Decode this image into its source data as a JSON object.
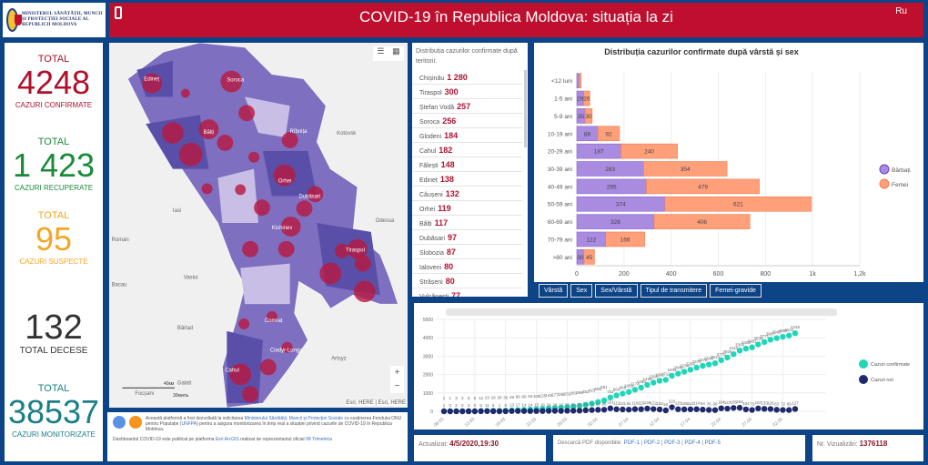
{
  "header": {
    "logo_text": "MINISTERUL SĂNĂTĂȚII, MUNCII ȘI PROTECȚIEI SOCIALE AL REPUBLICII MOLDOVA",
    "title": "COVID-19 în Republica Moldova: situația la zi",
    "lang": "Ru",
    "icon": "phone-icon"
  },
  "stats": [
    {
      "top": "TOTAL",
      "value": "4248",
      "label": "CAZURI CONFIRMATE",
      "color": "#b0102a"
    },
    {
      "top": "TOTAL",
      "value": "1 423",
      "label": "CAZURI RECUPERATE",
      "color": "#1b8a3a"
    },
    {
      "top": "TOTAL",
      "value": "95",
      "label": "CAZURI SUSPECTE",
      "color": "#f5a623"
    },
    {
      "top": "",
      "value": "132",
      "label": "TOTAL DECESE",
      "color": "#333333"
    },
    {
      "top": "TOTAL",
      "value": "38537",
      "label": "CAZURI MONITORIZATE",
      "color": "#1a7f86"
    }
  ],
  "map": {
    "labels": [
      "Edineț",
      "Soroca",
      "Bălți",
      "Rîbnița",
      "Kotovsk",
      "Orhei",
      "Dubăsari",
      "Kishinev",
      "Iasi",
      "Roman",
      "Tiraspol",
      "Vaslui",
      "Bacau",
      "Bârlad",
      "Comrat",
      "Ciadyr-Lunga",
      "Artsyz",
      "Cahul",
      "Galati",
      "Focșani",
      "Odessa"
    ],
    "scale_km": "40км",
    "scale_mi": "30миль",
    "attribution": "Esri, HERE | Esri, HERE",
    "zoom_in": "+",
    "zoom_out": "−"
  },
  "info": {
    "line1a": "Această platformă a fost dezvoltată la solicitarea ",
    "link1": "Ministerului Sănătății, Muncii și Protecției Sociale",
    "line1b": " cu susținerea Fondului ONU pentru Populație (",
    "link2": "UNFPA",
    "line1c": ") pentru a asigura monitorizarea în timp real a situației privind cazurile de COVID-19 în Republica Moldova.",
    "line2a": "Dashboardul COVID-19 este publicat pe platforma ",
    "link3": "Esri ArcGIS",
    "line2b": " realizat de reprezentantul oficial ",
    "link4": "IM Trimetrica"
  },
  "territory": {
    "header": "Distribuția cazurilor confirmate după teritorii:",
    "items": [
      {
        "name": "Chișinău",
        "value": "1 280"
      },
      {
        "name": "Tiraspol",
        "value": "300"
      },
      {
        "name": "Ștefan Vodă",
        "value": "257"
      },
      {
        "name": "Soroca",
        "value": "256"
      },
      {
        "name": "Glodeni",
        "value": "184"
      },
      {
        "name": "Cahul",
        "value": "182"
      },
      {
        "name": "Fălești",
        "value": "148"
      },
      {
        "name": "Edineț",
        "value": "138"
      },
      {
        "name": "Căușeni",
        "value": "132"
      },
      {
        "name": "Orhei",
        "value": "119"
      },
      {
        "name": "Bălți",
        "value": "117"
      },
      {
        "name": "Dubăsari",
        "value": "97"
      },
      {
        "name": "Slobozia",
        "value": "87"
      },
      {
        "name": "Ialoveni",
        "value": "80"
      },
      {
        "name": "Strășeni",
        "value": "80"
      },
      {
        "name": "Vulcănești",
        "value": "77"
      }
    ]
  },
  "tabs": [
    "Vârstă",
    "Sex",
    "Sex/Vârstă",
    "Tipul de transmitere",
    "Femei-gravide"
  ],
  "chart_data": [
    {
      "type": "bar",
      "stacked": true,
      "orientation": "horizontal",
      "title": "Distribuția cazurilor confirmate după vârstă și sex",
      "categories": [
        "<12 luni",
        "1-5 ani",
        "5-9 ani",
        "10-19 ani",
        "20-29 ani",
        "30-39 ani",
        "40-49 ani",
        "50-59 ani",
        "60-69 ani",
        "70-79 ani",
        ">80 ani"
      ],
      "series": [
        {
          "name": "Bărbați",
          "color": "#a98be0",
          "values": [
            10,
            29,
            35,
            89,
            187,
            283,
            295,
            374,
            328,
            122,
            30
          ]
        },
        {
          "name": "Femei",
          "color": "#ffa07a",
          "values": [
            8,
            26,
            30,
            92,
            240,
            354,
            479,
            621,
            406,
            166,
            45
          ]
        }
      ],
      "xlim": [
        0,
        1200
      ],
      "xticks": [
        "0",
        "200",
        "400",
        "600",
        "800",
        "1k",
        "1,2k"
      ],
      "legend": "right",
      "grid": true
    },
    {
      "type": "scatter",
      "x_start": "08.03",
      "xticks": [
        "08.03",
        "13.03",
        "18.03",
        "23.03",
        "28.03",
        "02.04",
        "07.04",
        "12.04",
        "17.04",
        "22.04",
        "27.04",
        "02.05"
      ],
      "ylim": [
        0,
        5000
      ],
      "yticks": [
        "0",
        "1000",
        "2000",
        "3000",
        "4000",
        "5000"
      ],
      "legend": "right",
      "grid": true,
      "series": [
        {
          "name": "Cazuri confirmate",
          "color": "#1fd6b8",
          "values": [
            1,
            1,
            3,
            3,
            6,
            6,
            12,
            23,
            29,
            30,
            36,
            49,
            66,
            80,
            94,
            109,
            125,
            149,
            177,
            199,
            231,
            263,
            298,
            353,
            423,
            505,
            591,
            752,
            864,
            965,
            1056,
            1174,
            1289,
            1438,
            1560,
            1662,
            1712,
            1934,
            2049,
            2154,
            2264,
            2378,
            2472,
            2548,
            2614,
            2778,
            2925,
            3110,
            3304,
            3408,
            3481,
            3638,
            3771,
            3897,
            3980,
            4052,
            4121,
            4248
          ]
        },
        {
          "name": "Cazuri noi",
          "color": "#1e2a6b",
          "values": [
            1,
            0,
            2,
            0,
            3,
            0,
            6,
            11,
            6,
            1,
            6,
            13,
            17,
            14,
            14,
            15,
            16,
            24,
            28,
            22,
            32,
            32,
            35,
            55,
            70,
            82,
            86,
            161,
            112,
            101,
            91,
            118,
            115,
            149,
            122,
            102,
            50,
            222,
            115,
            105,
            110,
            114,
            94,
            76,
            66,
            164,
            147,
            185,
            194,
            104,
            73,
            157,
            133,
            126,
            83,
            72,
            69,
            127
          ]
        }
      ]
    }
  ],
  "footer": {
    "updated_label": "Actualizat:",
    "updated_value": "4/5/2020,19:30",
    "pdf_label": "Descarcă PDF disponibile:",
    "pdfs": [
      "PDF-1",
      "PDF-2",
      "PDF-3",
      "PDF-4",
      "PDF-5"
    ],
    "views_label": "Nr. Vizualizări:",
    "views_value": "1376118"
  }
}
